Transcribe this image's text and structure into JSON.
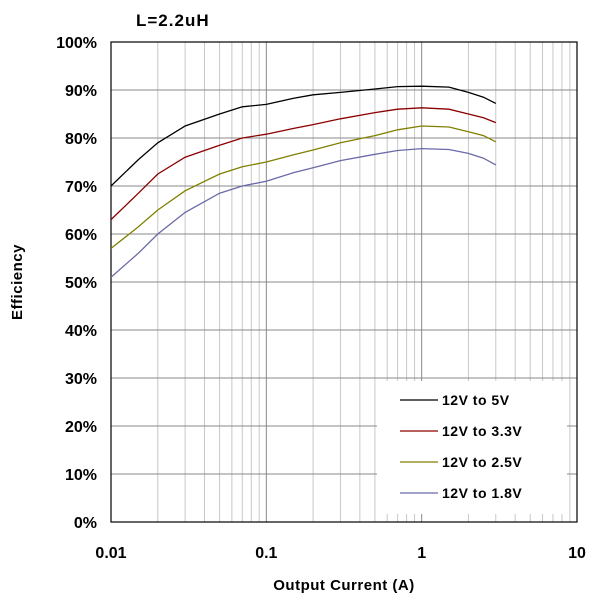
{
  "chart_data": {
    "type": "line",
    "title": "L=2.2uH",
    "title_color": "#1f4e79",
    "xlabel": "Output Current (A)",
    "ylabel": "Efficiency",
    "x_scale": "log",
    "xlim": [
      0.01,
      10
    ],
    "ylim": [
      0,
      100
    ],
    "x_ticks": [
      "0.01",
      "0.1",
      "1",
      "10"
    ],
    "y_ticks": [
      "0%",
      "10%",
      "20%",
      "30%",
      "40%",
      "50%",
      "60%",
      "70%",
      "80%",
      "90%",
      "100%"
    ],
    "grid": true,
    "legend_position": "bottom-right",
    "x": [
      0.01,
      0.015,
      0.02,
      0.03,
      0.05,
      0.07,
      0.1,
      0.15,
      0.2,
      0.3,
      0.5,
      0.7,
      1,
      1.5,
      2,
      2.5,
      3
    ],
    "series": [
      {
        "name": "12V to 5V",
        "color": "#000000",
        "values": [
          70,
          75.5,
          79,
          82.5,
          85,
          86.5,
          87,
          88.3,
          89,
          89.5,
          90.2,
          90.7,
          90.8,
          90.6,
          89.5,
          88.5,
          87.2
        ]
      },
      {
        "name": "12V to 3.3V",
        "color": "#8b0000",
        "values": [
          63,
          68.5,
          72.5,
          76,
          78.5,
          80,
          80.8,
          82,
          82.8,
          84,
          85.3,
          86,
          86.3,
          86,
          85,
          84.2,
          83.2
        ]
      },
      {
        "name": "12V to 2.5V",
        "color": "#808000",
        "values": [
          57,
          61.5,
          65,
          69,
          72.5,
          74,
          75,
          76.5,
          77.5,
          79,
          80.5,
          81.7,
          82.5,
          82.3,
          81.3,
          80.5,
          79.2
        ]
      },
      {
        "name": "12V to 1.8V",
        "color": "#6a6aa8",
        "values": [
          51,
          56,
          60,
          64.5,
          68.5,
          70,
          71,
          72.8,
          73.8,
          75.3,
          76.6,
          77.4,
          77.8,
          77.6,
          76.8,
          75.8,
          74.4
        ]
      }
    ]
  }
}
